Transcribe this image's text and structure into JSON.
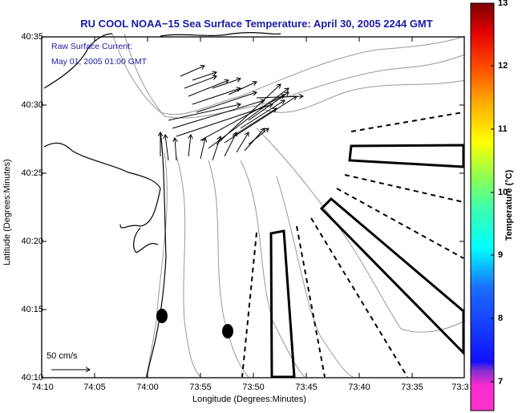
{
  "chart_data": {
    "type": "map",
    "title": "RU COOL  NOAA−15  Sea Surface Temperature:  April 30, 2005 2244 GMT",
    "annotation_line1": "Raw Surface Current:",
    "annotation_line2": "May 01, 2005 01:00 GMT",
    "xlabel": "Longitude (Degrees:Minutes)",
    "ylabel": "Latitude (Degrees:Minutes)",
    "x_ticks": [
      "74:10",
      "74:05",
      "74:00",
      "73:55",
      "73:50",
      "73:45",
      "73:40",
      "73:35",
      "73:3"
    ],
    "y_ticks": [
      "40:35",
      "40:30",
      "40:25",
      "40:20",
      "40:15",
      "40:10"
    ],
    "scale_vector_label": "50 cm/s",
    "colorbar": {
      "label": "Temperature (°C)",
      "ticks": [
        "13",
        "12",
        "11",
        "10",
        "9",
        "8",
        "7"
      ],
      "range": [
        6.6,
        13
      ],
      "colors": [
        "#ff33cc",
        "#7a2fd0",
        "#0a14ff",
        "#00ffff",
        "#66ff66",
        "#ffff00",
        "#ff9900",
        "#ff0000",
        "#880000"
      ]
    },
    "grid": false
  }
}
